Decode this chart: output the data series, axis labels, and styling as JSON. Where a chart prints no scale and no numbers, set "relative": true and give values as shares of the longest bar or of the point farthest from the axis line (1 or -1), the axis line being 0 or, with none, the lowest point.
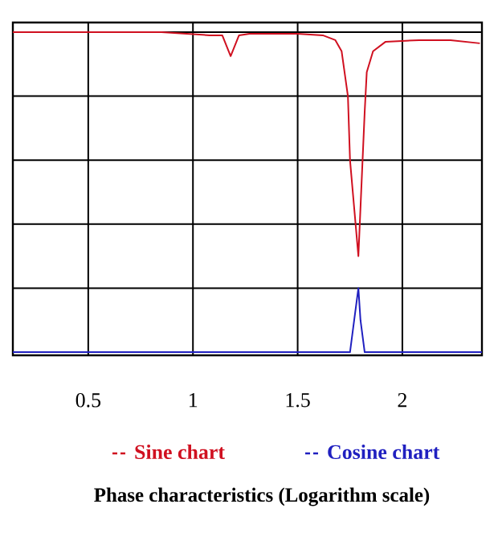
{
  "chart_data": {
    "type": "line",
    "title": "Phase characteristics (Logarithm scale)",
    "relative": true,
    "grid": true,
    "legend": "bottom",
    "marker": "none",
    "line_style": "solid",
    "xlim": [
      0.14,
      2.38
    ],
    "xticks": [
      0.5,
      1,
      1.5,
      2
    ],
    "series": [
      {
        "name": "Sine chart",
        "color": "#d01020",
        "x": [
          0.14,
          0.5,
          0.85,
          1.08,
          1.14,
          1.18,
          1.22,
          1.27,
          1.5,
          1.62,
          1.68,
          1.71,
          1.74,
          1.75,
          1.77,
          1.79,
          1.8,
          1.82,
          1.83,
          1.86,
          1.92,
          2.08,
          2.23,
          2.37
        ],
        "values": [
          1,
          1,
          1,
          0.99,
          0.99,
          0.925,
          0.99,
          0.995,
          0.995,
          0.99,
          0.975,
          0.94,
          0.8,
          0.6,
          0.45,
          0.3,
          0.45,
          0.75,
          0.875,
          0.94,
          0.97,
          0.975,
          0.975,
          0.965
        ]
      },
      {
        "name": "Cosine chart",
        "color": "#2020c0",
        "x": [
          0.14,
          1.5,
          1.75,
          1.77,
          1.79,
          1.8,
          1.82,
          2.1,
          2.38
        ],
        "values": [
          0,
          0,
          0,
          0.1,
          0.2,
          0.1,
          0,
          0,
          0
        ]
      }
    ]
  }
}
